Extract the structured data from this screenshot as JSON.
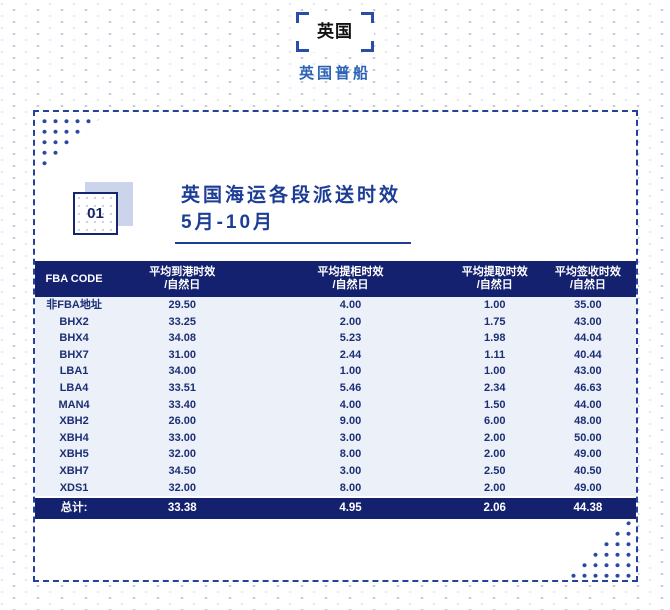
{
  "header": {
    "country": "英国",
    "subtitle": "英国普船"
  },
  "section": {
    "number": "01",
    "title_line1": "英国海运各段派送时效",
    "title_line2": "5月-10月"
  },
  "table": {
    "columns": [
      {
        "label": "FBA CODE",
        "sub": ""
      },
      {
        "label": "平均到港时效",
        "sub": "/自然日"
      },
      {
        "label": "平均提柜时效",
        "sub": "/自然日"
      },
      {
        "label": "平均提取时效",
        "sub": "/自然日"
      },
      {
        "label": "平均签收时效",
        "sub": "/自然日"
      }
    ],
    "rows": [
      {
        "code": "非FBA地址",
        "values": [
          "29.50",
          "4.00",
          "1.00",
          "35.00"
        ]
      },
      {
        "code": "BHX2",
        "values": [
          "33.25",
          "2.00",
          "1.75",
          "43.00"
        ]
      },
      {
        "code": "BHX4",
        "values": [
          "34.08",
          "5.23",
          "1.98",
          "44.04"
        ]
      },
      {
        "code": "BHX7",
        "values": [
          "31.00",
          "2.44",
          "1.11",
          "40.44"
        ]
      },
      {
        "code": "LBA1",
        "values": [
          "34.00",
          "1.00",
          "1.00",
          "43.00"
        ]
      },
      {
        "code": "LBA4",
        "values": [
          "33.51",
          "5.46",
          "2.34",
          "46.63"
        ]
      },
      {
        "code": "MAN4",
        "values": [
          "33.40",
          "4.00",
          "1.50",
          "44.00"
        ]
      },
      {
        "code": "XBH2",
        "values": [
          "26.00",
          "9.00",
          "6.00",
          "48.00"
        ]
      },
      {
        "code": "XBH4",
        "values": [
          "33.00",
          "3.00",
          "2.00",
          "50.00"
        ]
      },
      {
        "code": "XBH5",
        "values": [
          "32.00",
          "8.00",
          "2.00",
          "49.00"
        ]
      },
      {
        "code": "XBH7",
        "values": [
          "34.50",
          "3.00",
          "2.50",
          "40.50"
        ]
      },
      {
        "code": "XDS1",
        "values": [
          "32.00",
          "8.00",
          "2.00",
          "49.00"
        ]
      }
    ],
    "total": {
      "label": "总计:",
      "values": [
        "33.38",
        "4.95",
        "2.06",
        "44.38"
      ]
    }
  },
  "colors": {
    "navy": "#14216f",
    "title_blue": "#1c3d95",
    "subtitle_blue": "#2d63b4",
    "row_bg": "#ecf1f9",
    "dashed_border": "#24429a",
    "badge_shadow": "#ccd4ec"
  }
}
